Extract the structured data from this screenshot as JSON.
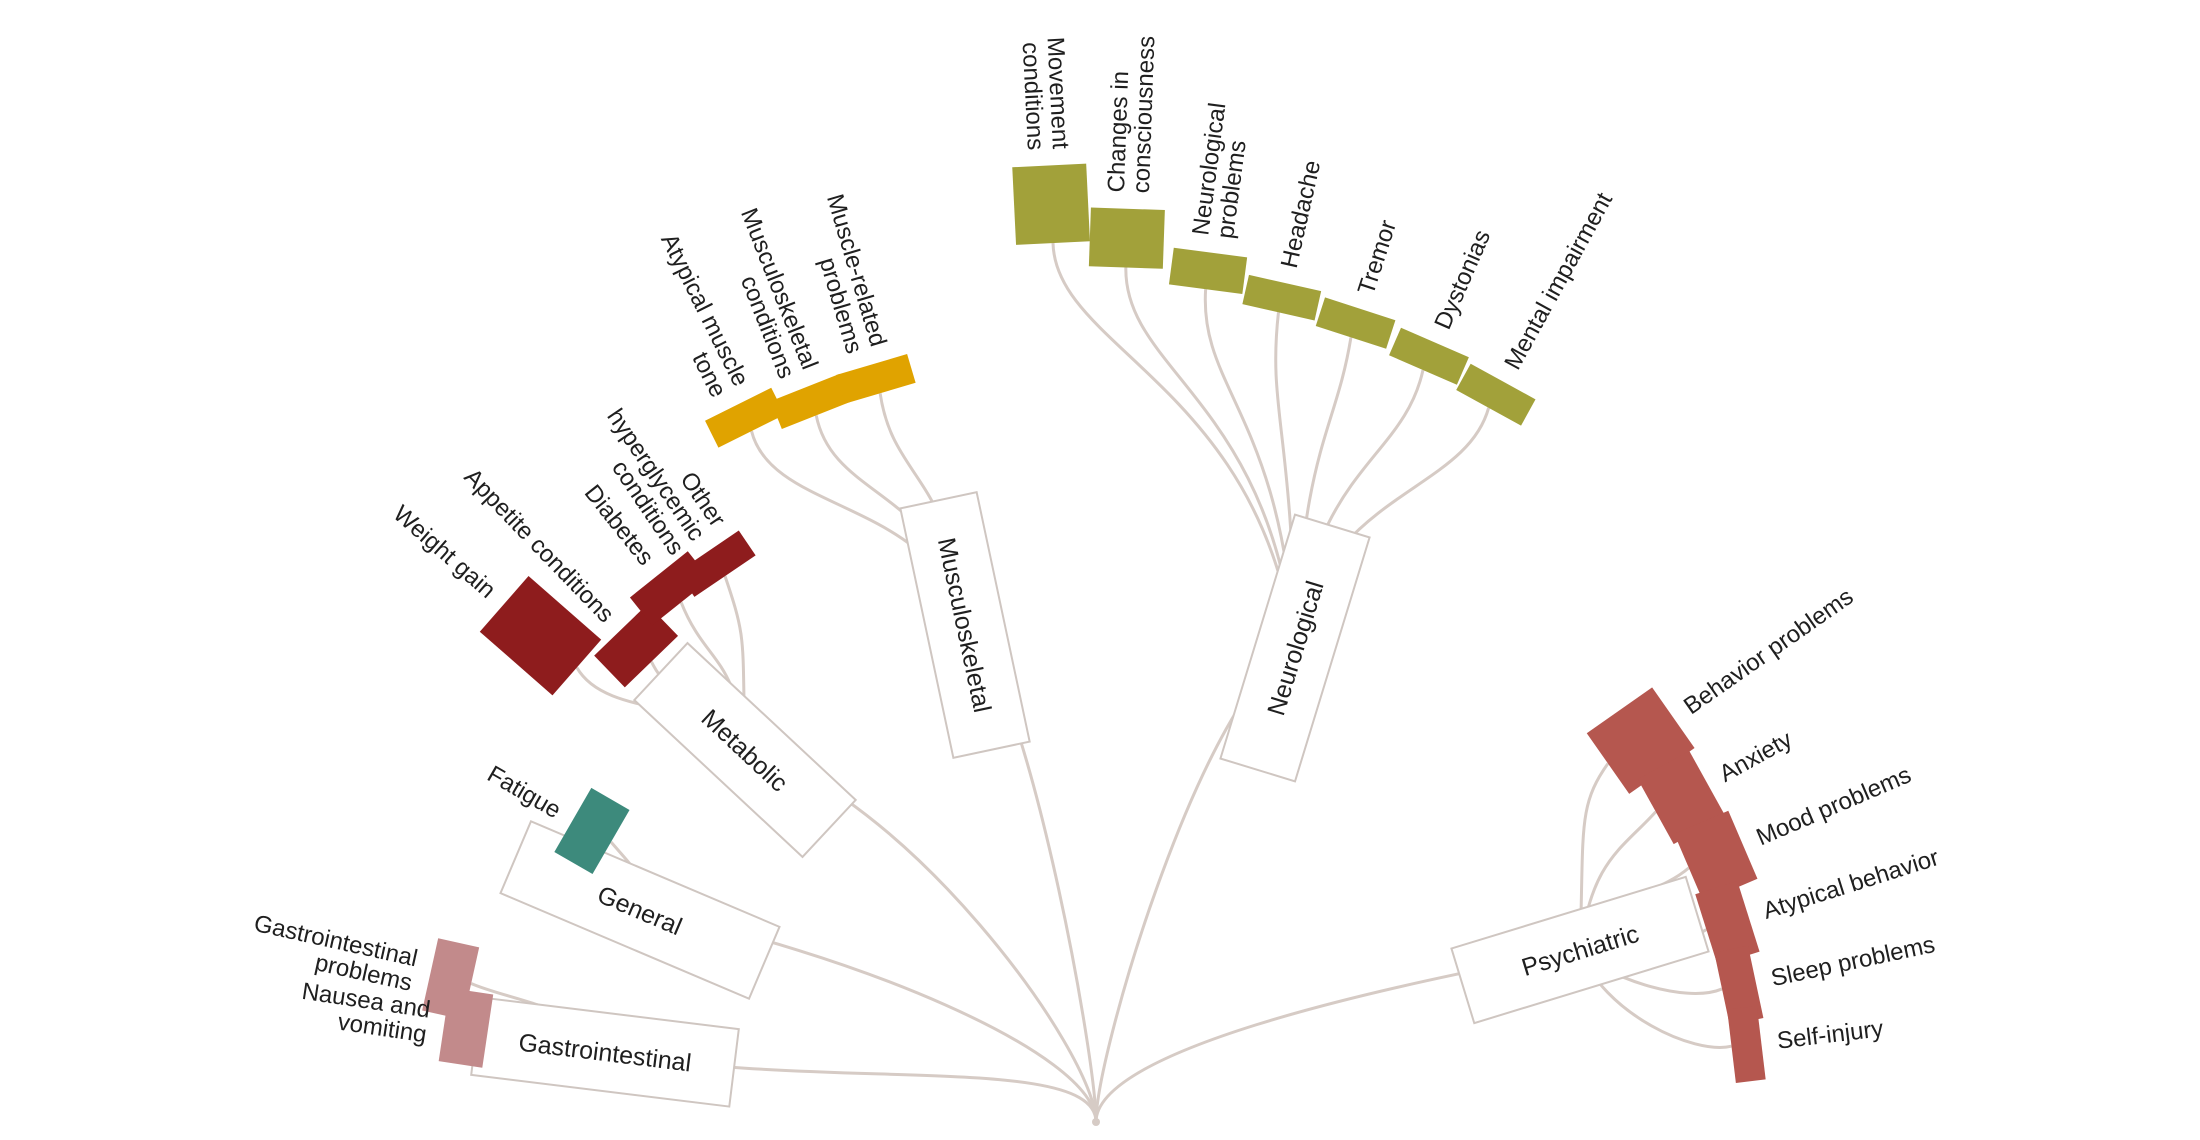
{
  "colors": {
    "link": "#d6cbc5",
    "metabolic": "#8e1c1d",
    "general": "#3d8a7c",
    "gastrointestinal": "#c28a8b",
    "musculoskeletal": "#e0a300",
    "neurological": "#a2a13a",
    "psychiatric": "#b5574f"
  },
  "categories": [
    {
      "name": "Gastrointestinal",
      "color_key": "gastrointestinal",
      "leaves": [
        {
          "lines": [
            "Gastrointestinal",
            "problems"
          ],
          "size": 1.0
        },
        {
          "lines": [
            "Nausea and",
            "vomiting"
          ],
          "size": 1.05
        }
      ]
    },
    {
      "name": "General",
      "color_key": "general",
      "leaves": [
        {
          "lines": [
            "Fatigue"
          ],
          "size": 1.05
        }
      ]
    },
    {
      "name": "Metabolic",
      "color_key": "metabolic",
      "leaves": [
        {
          "lines": [
            "Weight gain"
          ],
          "size": 2.3
        },
        {
          "lines": [
            "Appetite conditions"
          ],
          "size": 1.05
        },
        {
          "lines": [
            "Diabetes"
          ],
          "size": 0.85
        },
        {
          "lines": [
            "Other",
            "hyperglycemic",
            "conditions"
          ],
          "size": 0.65
        }
      ]
    },
    {
      "name": "Musculoskeletal",
      "color_key": "musculoskeletal",
      "leaves": [
        {
          "lines": [
            "Atypical muscle",
            "tone"
          ],
          "size": 0.3
        },
        {
          "lines": [
            "Musculoskeletal",
            "conditions"
          ],
          "size": 0.3
        },
        {
          "lines": [
            "Muscle-related",
            "problems"
          ],
          "size": 0.28
        }
      ]
    },
    {
      "name": "Neurological",
      "color_key": "neurological",
      "leaves": [
        {
          "lines": [
            "Movement",
            "conditions"
          ],
          "size": 1.85
        },
        {
          "lines": [
            "Changes in",
            "consciousness"
          ],
          "size": 1.4
        },
        {
          "lines": [
            "Neurological",
            "problems"
          ],
          "size": 0.88
        },
        {
          "lines": [
            "Headache"
          ],
          "size": 0.62
        },
        {
          "lines": [
            "Tremor"
          ],
          "size": 0.5
        },
        {
          "lines": [
            "Dystonias"
          ],
          "size": 0.45
        },
        {
          "lines": [
            "Mental impairment"
          ],
          "size": 0.4
        }
      ]
    },
    {
      "name": "Psychiatric",
      "color_key": "psychiatric",
      "leaves": [
        {
          "lines": [
            "Behavior problems"
          ],
          "size": 1.9
        },
        {
          "lines": [
            "Anxiety"
          ],
          "size": 1.4
        },
        {
          "lines": [
            "Mood problems"
          ],
          "size": 1.4
        },
        {
          "lines": [
            "Atypical behavior"
          ],
          "size": 1.05
        },
        {
          "lines": [
            "Sleep problems"
          ],
          "size": 0.82
        },
        {
          "lines": [
            "Self-injury"
          ],
          "size": 0.68
        }
      ]
    }
  ]
}
